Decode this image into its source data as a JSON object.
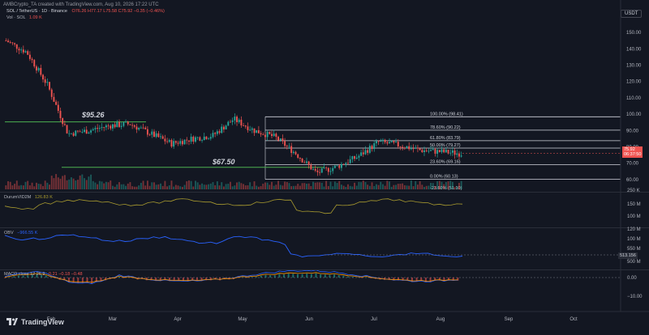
{
  "header": {
    "watermark": "AMBCrypto_TA created with TradingView.com, Aug 10, 2026 17:22 UTC",
    "symbol_line": "SOL / TetherUS · 1D · Binance",
    "ohlc": "O76.26  H77.17  L75.58  C75.92  −0.35 (−0.46%)",
    "vol_line": "Vol · SOL",
    "vol_value": "1.09 K"
  },
  "currency_button": "USDT",
  "price_tag": {
    "price": "75.92",
    "countdown": "06:37:50"
  },
  "price_axis": [
    "150.00",
    "140.00",
    "130.00",
    "120.00",
    "110.00",
    "100.00",
    "90.00",
    "80.00",
    "70.00",
    "60.00"
  ],
  "annotations": {
    "level_high": "$95.26",
    "level_low": "$67.50"
  },
  "fib_levels": [
    {
      "label": "100.00% (98.41)",
      "price": 98.41
    },
    {
      "label": "78.60% (90.22)",
      "price": 90.22
    },
    {
      "label": "61.80% (83.79)",
      "price": 83.79
    },
    {
      "label": "50.00% (79.27)",
      "price": 79.27
    },
    {
      "label": "23.60% (69.16)",
      "price": 69.16
    },
    {
      "label": "0.00% (60.13)",
      "price": 60.13
    },
    {
      "label": "-23.60% (51.10)",
      "price": 51.1
    }
  ],
  "volume_axis": "250 K",
  "dmi": {
    "label": "DurumVID2M",
    "value": "126.83 K",
    "axis": [
      "150 M",
      "100 M"
    ]
  },
  "obv": {
    "label": "OBV",
    "value": "−966.55 K",
    "axis": [
      "120 M",
      "100 M",
      "550 M",
      "513.156",
      "500 M"
    ]
  },
  "macd": {
    "label": "MACD",
    "params": "close 12 26 9",
    "values": "0.21  −0.18  −0.48",
    "axis": [
      "0.00",
      "−10.00"
    ]
  },
  "time_axis": [
    "Feb",
    "Mar",
    "Apr",
    "May",
    "Jun",
    "Jul",
    "Aug",
    "Sep",
    "Oct"
  ],
  "brand": "TradingView",
  "colors": {
    "up": "#26a69a",
    "down": "#ef5350",
    "fib": "#d1d4dc",
    "support": "#4caf50",
    "dmi": "#a89a2f",
    "obv": "#2962ff",
    "bg": "#131722"
  },
  "chart_data": {
    "type": "candlestick",
    "symbol": "SOL/USDT",
    "interval": "1D",
    "ylim": [
      55,
      155
    ],
    "x": [
      "Jan 10",
      "Jan 20",
      "Jan 28",
      "Feb 5",
      "Feb 15",
      "Mar 1",
      "Mar 10",
      "Mar 20",
      "Apr 1",
      "Apr 15",
      "Apr 25",
      "May 1",
      "May 10",
      "May 20",
      "May 28",
      "Jun 3",
      "Jun 10",
      "Jun 20",
      "Jul 1",
      "Jul 10",
      "Jul 20",
      "Aug 1",
      "Aug 10"
    ],
    "close": [
      145,
      138,
      118,
      88,
      90,
      93,
      94,
      88,
      82,
      85,
      87,
      97,
      90,
      86,
      76,
      64,
      68,
      74,
      83,
      81,
      78,
      77,
      75.92
    ],
    "horizontal_levels": [
      95.26,
      67.5
    ]
  }
}
